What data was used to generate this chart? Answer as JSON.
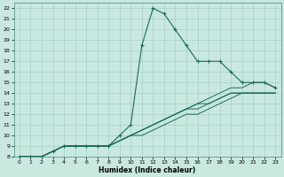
{
  "xlabel": "Humidex (Indice chaleur)",
  "bg_color": "#c8e8e0",
  "grid_color": "#a8d0c8",
  "line_color": "#1a6b5a",
  "xlim": [
    -0.5,
    23.5
  ],
  "ylim": [
    8,
    22.5
  ],
  "xticks": [
    0,
    1,
    2,
    3,
    4,
    5,
    6,
    7,
    8,
    9,
    10,
    11,
    12,
    13,
    14,
    15,
    16,
    17,
    18,
    19,
    20,
    21,
    22,
    23
  ],
  "yticks": [
    8,
    9,
    10,
    11,
    12,
    13,
    14,
    15,
    16,
    17,
    18,
    19,
    20,
    21,
    22
  ],
  "main_x": [
    0,
    1,
    2,
    3,
    4,
    5,
    6,
    7,
    8,
    9,
    10,
    11,
    12,
    13,
    14,
    15,
    16,
    17,
    18,
    19,
    20,
    21,
    22,
    23
  ],
  "main_y": [
    8,
    8,
    8,
    8.5,
    9,
    9,
    9,
    9,
    9,
    10,
    11,
    18.5,
    22,
    21.5,
    20,
    18.5,
    17,
    17,
    17,
    16,
    15,
    15,
    15,
    14.5
  ],
  "line2_y": [
    8,
    8,
    8,
    8.5,
    9,
    9,
    9,
    9,
    9,
    9.5,
    10,
    10.5,
    11,
    11.5,
    12,
    12.5,
    13,
    13.5,
    14,
    14.5,
    14.5,
    15,
    15,
    14.5
  ],
  "line3_y": [
    8,
    8,
    8,
    8.5,
    9,
    9,
    9,
    9,
    9,
    9.5,
    10,
    10.5,
    11,
    11.5,
    12,
    12.5,
    13,
    13,
    13.5,
    14,
    14,
    14,
    14,
    14
  ],
  "line4_y": [
    8,
    8,
    8,
    8.5,
    9,
    9,
    9,
    9,
    9,
    9.5,
    10,
    10.5,
    11,
    11.5,
    12,
    12.5,
    12.5,
    13,
    13.5,
    14,
    14,
    14,
    14,
    14
  ],
  "line5_y": [
    8,
    8,
    8,
    8.5,
    9,
    9,
    9,
    9,
    9,
    9.5,
    10,
    10,
    10.5,
    11,
    11.5,
    12,
    12,
    12.5,
    13,
    13.5,
    14,
    14,
    14,
    14
  ]
}
